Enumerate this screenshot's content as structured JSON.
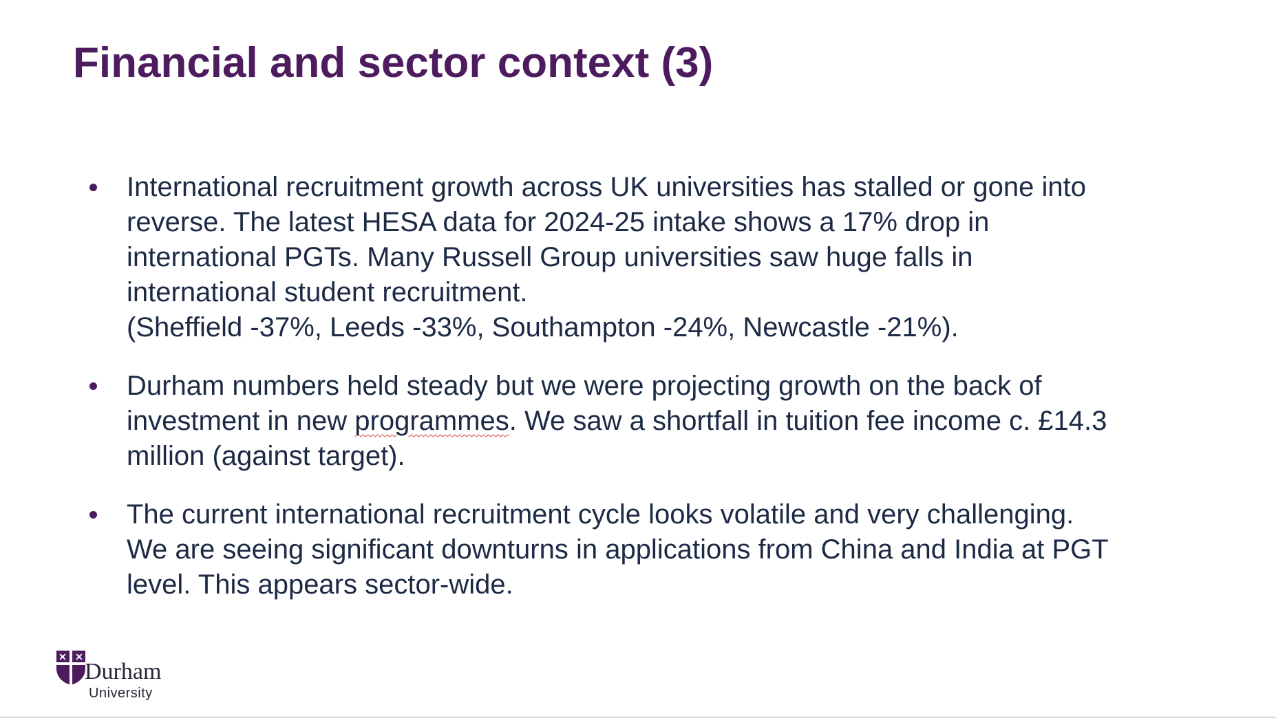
{
  "slide": {
    "title": "Financial and sector context (3)",
    "bullets": [
      {
        "lines": [
          "International recruitment growth across UK universities has stalled or gone into",
          "reverse. The latest HESA data for 2024-25 intake shows a 17% drop in",
          "international PGTs. Many Russell Group universities saw huge falls in",
          "international student recruitment.",
          "(Sheffield -37%, Leeds -33%, Southampton -24%, Newcastle -21%)."
        ]
      },
      {
        "line1": "Durham numbers held steady but we were projecting growth on the back of",
        "line2_before": "investment in new ",
        "line2_underlined": "programmes",
        "line2_after": ". We saw a shortfall in tuition fee income c. £14.3",
        "line3": "million (against target)."
      },
      {
        "lines": [
          "The current international recruitment cycle looks volatile and very challenging.",
          "We are seeing significant downturns in applications from China and India at PGT",
          "level. This appears sector-wide."
        ]
      }
    ],
    "bullet_color": "#4d1c5f",
    "title_color": "#4d1c5f",
    "text_color": "#1c2a45"
  },
  "logo": {
    "name": "Durham",
    "subtitle": "University",
    "icon": "university-crest-icon",
    "color": "#4d1c5f"
  }
}
